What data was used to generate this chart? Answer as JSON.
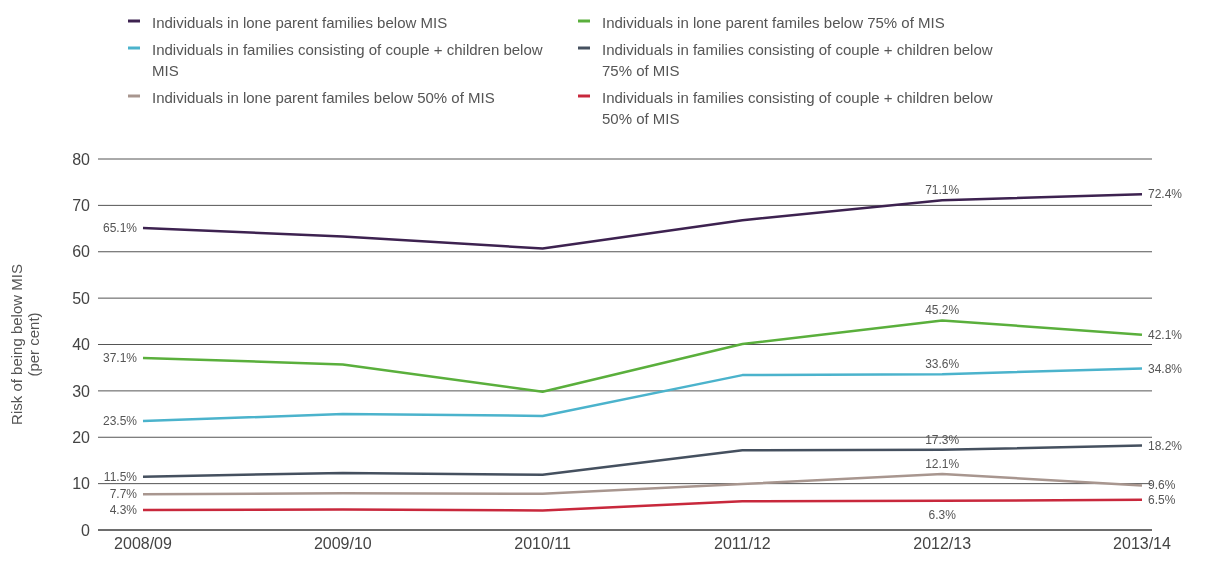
{
  "chart_data": {
    "type": "line",
    "ylabel": "Risk of being below MIS\n(per cent)",
    "categories": [
      "2008/09",
      "2009/10",
      "2010/11",
      "2011/12",
      "2012/13",
      "2013/14"
    ],
    "series": [
      {
        "name": "Individuals in lone parent families below MIS",
        "color": "#3d2250",
        "values": [
          65.1,
          63.3,
          60.7,
          66.8,
          71.1,
          72.4
        ],
        "value_labels": [
          "65.1%",
          null,
          null,
          null,
          "71.1%",
          "72.4%"
        ]
      },
      {
        "name": "Individuals in lone parent familes below 75% of MIS",
        "color": "#5aaf3c",
        "values": [
          37.1,
          35.7,
          29.8,
          40.1,
          45.2,
          42.1
        ],
        "value_labels": [
          "37.1%",
          null,
          null,
          null,
          "45.2%",
          "42.1%"
        ]
      },
      {
        "name": "Individuals in families consisting of couple + children below MIS",
        "color": "#4bb3cc",
        "values": [
          23.5,
          25.0,
          24.6,
          33.4,
          33.6,
          34.8
        ],
        "value_labels": [
          "23.5%",
          null,
          null,
          null,
          "33.6%",
          "34.8%"
        ]
      },
      {
        "name": "Individuals in families consisting of couple + children below 75% of MIS",
        "color": "#45505f",
        "values": [
          11.5,
          12.3,
          11.9,
          17.2,
          17.3,
          18.2
        ],
        "value_labels": [
          "11.5%",
          null,
          null,
          null,
          "17.3%",
          "18.2%"
        ]
      },
      {
        "name": "Individuals in lone parent familes below 50% of MIS",
        "color": "#a8968f",
        "values": [
          7.7,
          7.9,
          7.8,
          9.9,
          12.1,
          9.6
        ],
        "value_labels": [
          "7.7%",
          null,
          null,
          null,
          "12.1%",
          "9.6%"
        ]
      },
      {
        "name": "Individuals in families consisting of couple + children below 50% of MIS",
        "color": "#c8283c",
        "values": [
          4.3,
          4.4,
          4.2,
          6.2,
          6.3,
          6.5
        ],
        "value_labels": [
          "4.3%",
          null,
          null,
          null,
          "6.3%",
          "6.5%"
        ]
      }
    ],
    "ylim": [
      0,
      80
    ],
    "yticks": [
      0,
      10,
      20,
      30,
      40,
      50,
      60,
      70,
      80
    ],
    "grid": "y",
    "legend": "top",
    "marker": "none",
    "line_style": "solid"
  }
}
